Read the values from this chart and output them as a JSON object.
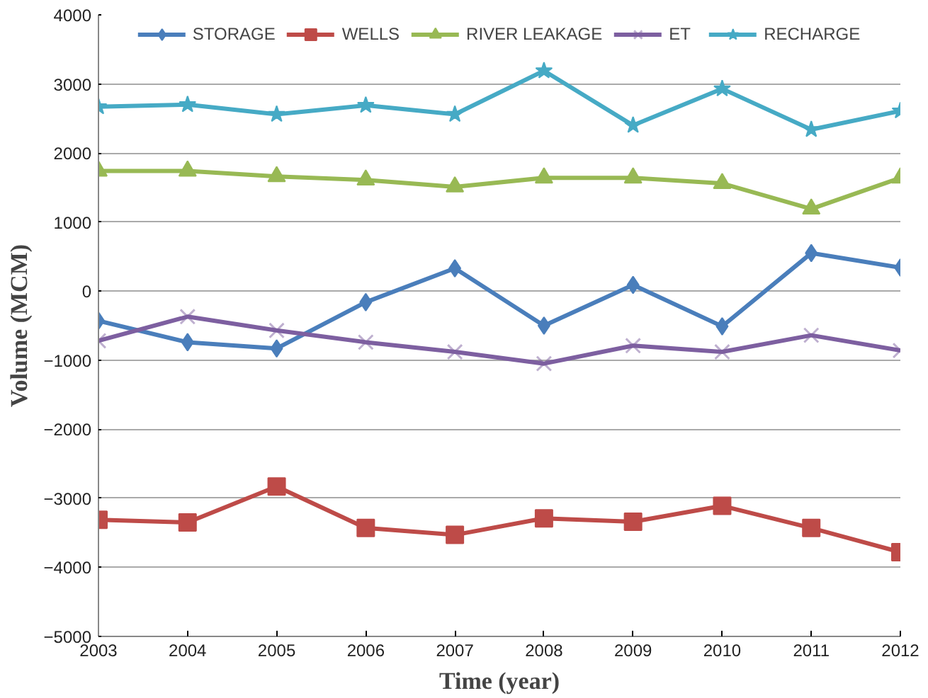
{
  "chart_data": {
    "type": "line",
    "xlabel": "Time (year)",
    "ylabel": "Volume (MCM)",
    "x": [
      2003,
      2004,
      2005,
      2006,
      2007,
      2008,
      2009,
      2010,
      2011,
      2012
    ],
    "xlim": [
      2003,
      2012
    ],
    "xticks": [
      2003,
      2004,
      2005,
      2006,
      2007,
      2008,
      2009,
      2010,
      2011,
      2012
    ],
    "ylim": [
      -5000,
      4000
    ],
    "yticks": [
      -5000,
      -4000,
      -3000,
      -2000,
      -1000,
      0,
      1000,
      2000,
      3000,
      4000
    ],
    "grid": "y",
    "legend": "top",
    "series": [
      {
        "name": "STORAGE",
        "color": "#4a7ebb",
        "marker": "diamond",
        "values": [
          -430,
          -740,
          -830,
          -160,
          330,
          -500,
          90,
          -510,
          550,
          340
        ]
      },
      {
        "name": "WELLS",
        "color": "#be4b48",
        "marker": "square",
        "values": [
          -3310,
          -3350,
          -2830,
          -3430,
          -3530,
          -3290,
          -3340,
          -3110,
          -3430,
          -3780
        ]
      },
      {
        "name": "RIVER LEAKAGE",
        "color": "#98b954",
        "marker": "triangle",
        "values": [
          1740,
          1740,
          1660,
          1610,
          1510,
          1640,
          1640,
          1560,
          1190,
          1640
        ]
      },
      {
        "name": "ET",
        "color": "#7d5fa0",
        "marker": "cross",
        "values": [
          -720,
          -370,
          -570,
          -740,
          -880,
          -1050,
          -790,
          -880,
          -640,
          -860
        ]
      },
      {
        "name": "RECHARGE",
        "color": "#46aac5",
        "marker": "star",
        "values": [
          2670,
          2700,
          2560,
          2690,
          2560,
          3190,
          2400,
          2930,
          2340,
          2610
        ]
      }
    ]
  }
}
